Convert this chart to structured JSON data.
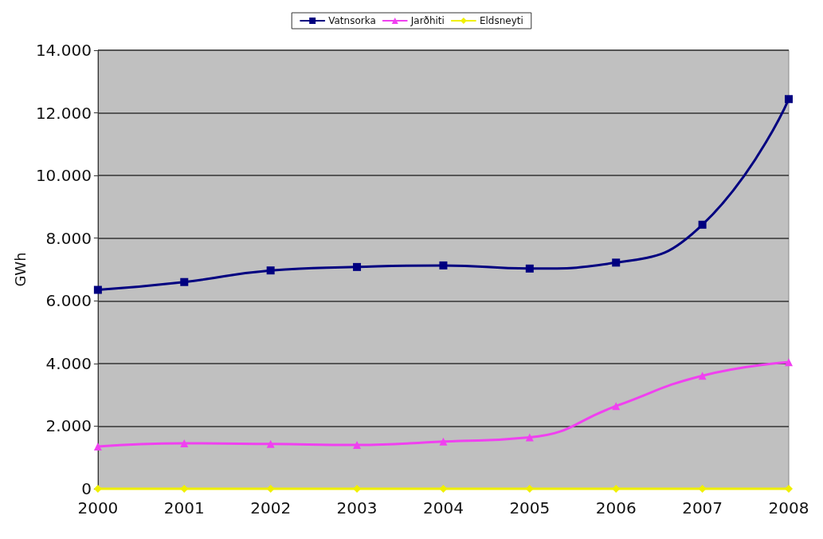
{
  "chart_data": {
    "type": "line",
    "ylabel": "GWh",
    "categories": [
      "2000",
      "2001",
      "2002",
      "2003",
      "2004",
      "2005",
      "2006",
      "2007",
      "2008"
    ],
    "series": [
      {
        "name": "Vatnsorka",
        "color": "#000080",
        "marker": "square",
        "values": [
          6350,
          6600,
          6970,
          7080,
          7130,
          7030,
          7220,
          8430,
          12440
        ]
      },
      {
        "name": "Jarðhiti",
        "color": "#f040f0",
        "marker": "triangle",
        "values": [
          1350,
          1450,
          1430,
          1400,
          1510,
          1640,
          2640,
          3610,
          4040
        ]
      },
      {
        "name": "Eldsneyti",
        "color": "#f0f000",
        "marker": "diamond",
        "values": [
          0,
          0,
          0,
          0,
          0,
          0,
          0,
          0,
          0
        ]
      }
    ],
    "ylim": [
      0,
      14000
    ],
    "yticks": [
      {
        "value": 0,
        "label": "0"
      },
      {
        "value": 2000,
        "label": "2.000"
      },
      {
        "value": 4000,
        "label": "4.000"
      },
      {
        "value": 6000,
        "label": "6.000"
      },
      {
        "value": 8000,
        "label": "8.000"
      },
      {
        "value": 10000,
        "label": "10.000"
      },
      {
        "value": 12000,
        "label": "12.000"
      },
      {
        "value": 14000,
        "label": "14.000"
      }
    ],
    "grid": "y",
    "legend": "top"
  }
}
